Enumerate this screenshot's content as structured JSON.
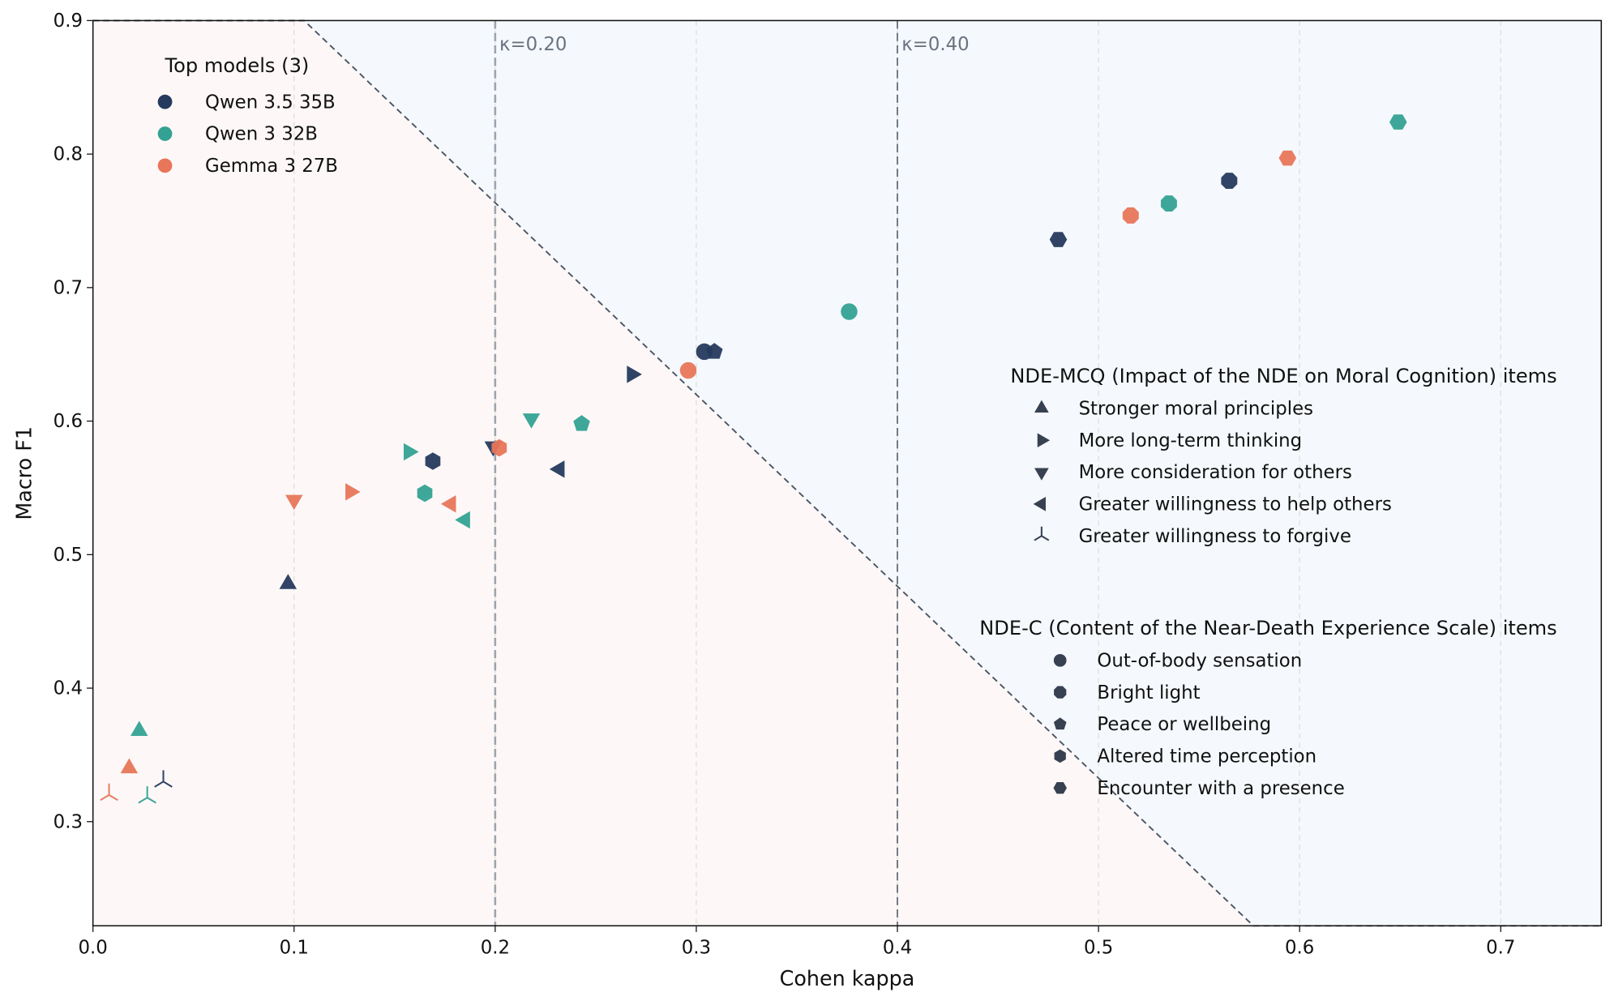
{
  "chart_data": {
    "type": "scatter",
    "xlabel": "Cohen kappa",
    "ylabel": "Macro F1",
    "xlim": [
      0,
      0.75
    ],
    "ylim": [
      0.222,
      0.9
    ],
    "xticks": [
      "0.0",
      "0.1",
      "0.2",
      "0.3",
      "0.4",
      "0.5",
      "0.6",
      "0.7"
    ],
    "yticks": [
      "0.3",
      "0.4",
      "0.5",
      "0.6",
      "0.7",
      "0.8",
      "0.9"
    ],
    "grid": "vertical dashed",
    "reference_lines": [
      {
        "x": 0.2,
        "label": "κ=0.20"
      },
      {
        "x": 0.4,
        "label": "κ=0.40"
      }
    ],
    "boundary_line": [
      [
        0,
        0.9
      ],
      [
        0.105,
        0.9
      ],
      [
        0.577,
        0.222
      ],
      [
        0.75,
        0.222
      ]
    ],
    "region_colors": {
      "below": "#fdf8f7",
      "above": "#f5f9fd"
    },
    "models_legend": {
      "title": "Top models (3)",
      "placement": "top-left",
      "items": [
        {
          "name": "Qwen 3.5 35B",
          "color": "#263a5e"
        },
        {
          "name": "Qwen 3 32B",
          "color": "#34a293"
        },
        {
          "name": "Gemma 3 27B",
          "color": "#e8765a"
        }
      ]
    },
    "mcq_legend": {
      "title": "NDE-MCQ (Impact of the NDE on Moral Cognition) items",
      "items": [
        {
          "name": "Stronger moral principles",
          "marker": "triangle-up"
        },
        {
          "name": "More long-term thinking",
          "marker": "triangle-right"
        },
        {
          "name": "More consideration for others",
          "marker": "triangle-down"
        },
        {
          "name": "Greater willingness to help others",
          "marker": "triangle-left"
        },
        {
          "name": "Greater willingness to forgive",
          "marker": "tri"
        }
      ]
    },
    "ndec_legend": {
      "title": "NDE-C (Content of the Near-Death Experience Scale) items",
      "items": [
        {
          "name": "Out-of-body sensation",
          "marker": "circle"
        },
        {
          "name": "Bright light",
          "marker": "octagon"
        },
        {
          "name": "Peace or wellbeing",
          "marker": "pentagon"
        },
        {
          "name": "Altered time perception",
          "marker": "hexagon"
        },
        {
          "name": "Encounter with a presence",
          "marker": "hexagon-flat"
        }
      ]
    },
    "points": [
      {
        "model": 0,
        "marker": "triangle-up",
        "x": 0.097,
        "y": 0.478
      },
      {
        "model": 0,
        "marker": "triangle-right",
        "x": 0.268,
        "y": 0.635
      },
      {
        "model": 0,
        "marker": "triangle-down",
        "x": 0.199,
        "y": 0.581
      },
      {
        "model": 0,
        "marker": "triangle-left",
        "x": 0.232,
        "y": 0.564
      },
      {
        "model": 0,
        "marker": "tri",
        "x": 0.035,
        "y": 0.33
      },
      {
        "model": 0,
        "marker": "circle",
        "x": 0.304,
        "y": 0.652
      },
      {
        "model": 0,
        "marker": "octagon",
        "x": 0.565,
        "y": 0.78
      },
      {
        "model": 0,
        "marker": "pentagon",
        "x": 0.309,
        "y": 0.652
      },
      {
        "model": 0,
        "marker": "hexagon",
        "x": 0.169,
        "y": 0.57
      },
      {
        "model": 0,
        "marker": "hexagon-flat",
        "x": 0.48,
        "y": 0.736
      },
      {
        "model": 1,
        "marker": "triangle-up",
        "x": 0.023,
        "y": 0.368
      },
      {
        "model": 1,
        "marker": "triangle-right",
        "x": 0.157,
        "y": 0.577
      },
      {
        "model": 1,
        "marker": "triangle-down",
        "x": 0.218,
        "y": 0.602
      },
      {
        "model": 1,
        "marker": "triangle-left",
        "x": 0.185,
        "y": 0.526
      },
      {
        "model": 1,
        "marker": "tri",
        "x": 0.027,
        "y": 0.318
      },
      {
        "model": 1,
        "marker": "circle",
        "x": 0.376,
        "y": 0.682
      },
      {
        "model": 1,
        "marker": "octagon",
        "x": 0.535,
        "y": 0.763
      },
      {
        "model": 1,
        "marker": "pentagon",
        "x": 0.243,
        "y": 0.598
      },
      {
        "model": 1,
        "marker": "hexagon",
        "x": 0.165,
        "y": 0.546
      },
      {
        "model": 1,
        "marker": "hexagon-flat",
        "x": 0.649,
        "y": 0.824
      },
      {
        "model": 2,
        "marker": "triangle-up",
        "x": 0.018,
        "y": 0.34
      },
      {
        "model": 2,
        "marker": "triangle-right",
        "x": 0.128,
        "y": 0.547
      },
      {
        "model": 2,
        "marker": "triangle-down",
        "x": 0.1,
        "y": 0.541
      },
      {
        "model": 2,
        "marker": "triangle-left",
        "x": 0.178,
        "y": 0.538
      },
      {
        "model": 2,
        "marker": "tri",
        "x": 0.008,
        "y": 0.32
      },
      {
        "model": 2,
        "marker": "circle",
        "x": 0.296,
        "y": 0.638
      },
      {
        "model": 2,
        "marker": "octagon",
        "x": 0.516,
        "y": 0.754
      },
      {
        "model": 2,
        "marker": "hexagon",
        "x": 0.202,
        "y": 0.58
      },
      {
        "model": 2,
        "marker": "hexagon-flat",
        "x": 0.594,
        "y": 0.797
      }
    ]
  }
}
